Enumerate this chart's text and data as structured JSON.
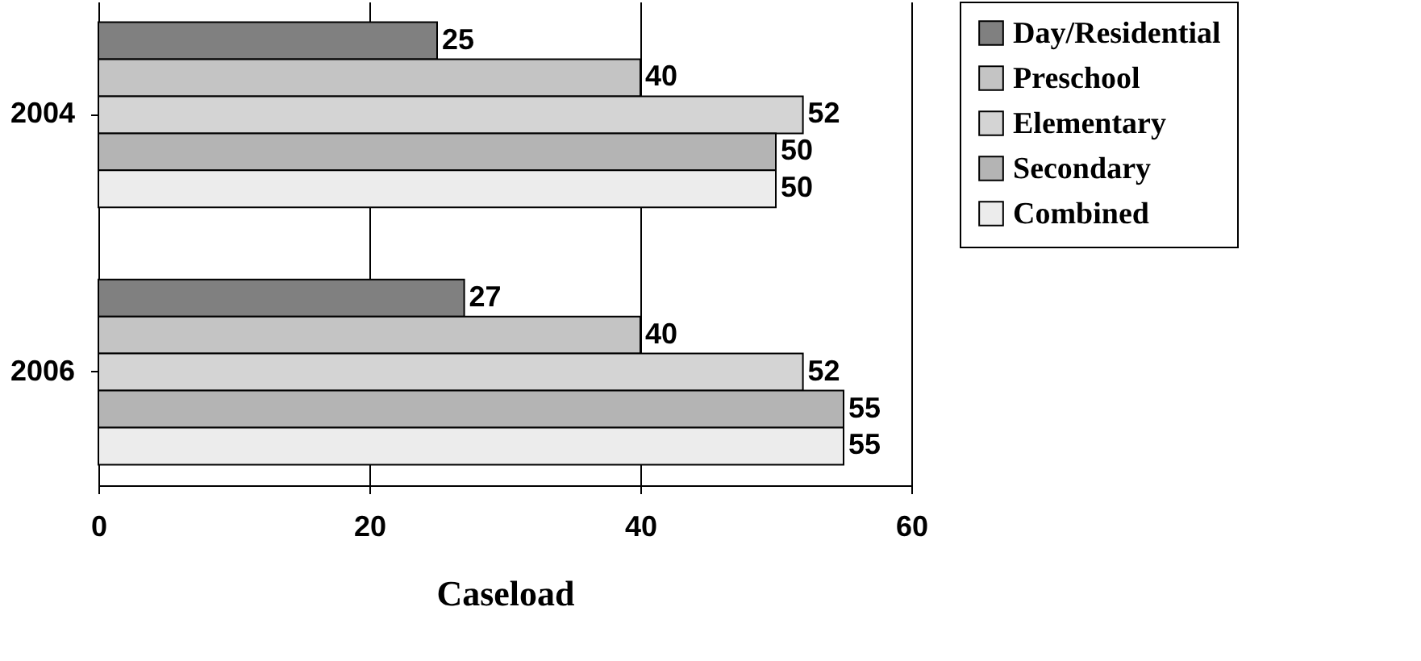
{
  "chart_data": {
    "type": "bar",
    "orientation": "horizontal",
    "xlabel": "Caseload",
    "categories": [
      "2004",
      "2006"
    ],
    "series": [
      {
        "name": "Day/Residential",
        "color": "#808080",
        "values": [
          25,
          27
        ]
      },
      {
        "name": "Preschool",
        "color": "#c4c4c4",
        "values": [
          40,
          40
        ]
      },
      {
        "name": "Elementary",
        "color": "#d4d4d4",
        "values": [
          52,
          52
        ]
      },
      {
        "name": "Secondary",
        "color": "#b4b4b4",
        "values": [
          50,
          55
        ]
      },
      {
        "name": "Combined",
        "color": "#ececec",
        "values": [
          50,
          55
        ]
      }
    ],
    "xlim": [
      0,
      60
    ],
    "xticks": [
      0,
      20,
      40,
      60
    ],
    "grid": "x",
    "legend": "right",
    "data_labels": true
  }
}
